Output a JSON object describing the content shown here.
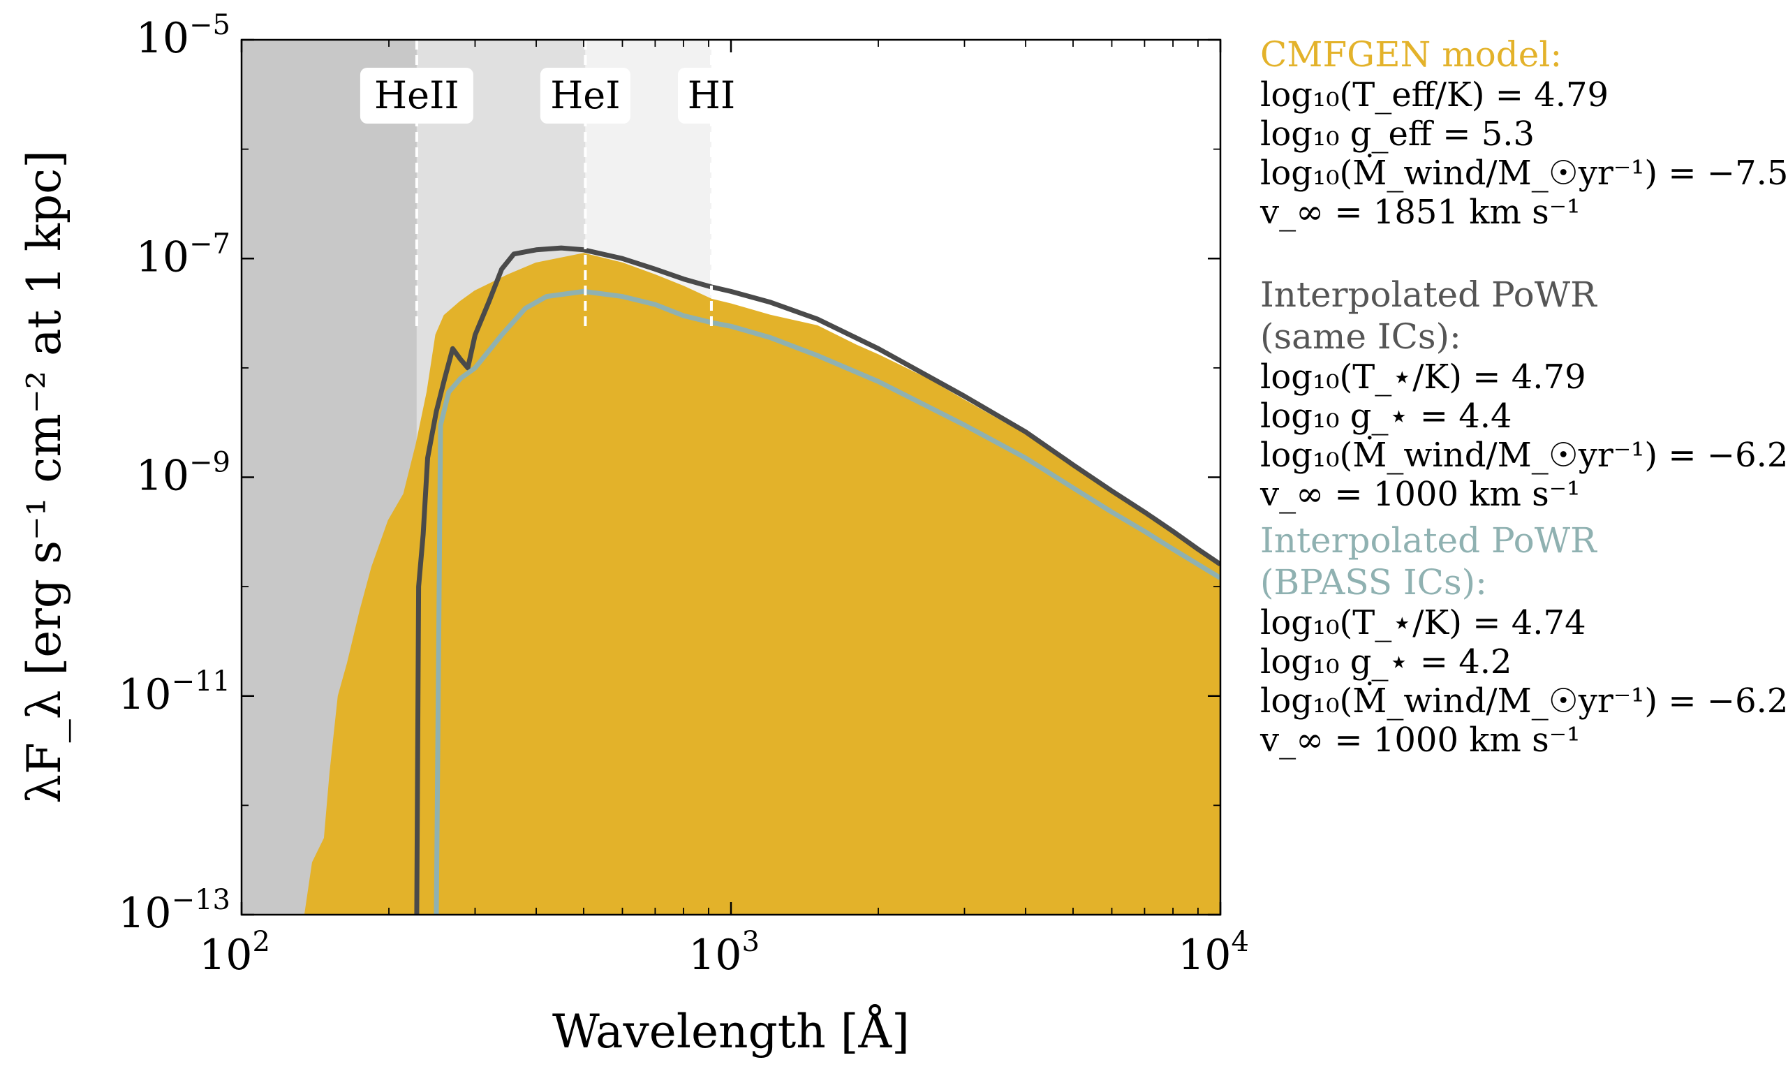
{
  "chart_data": {
    "type": "line",
    "xscale": "log",
    "yscale": "log",
    "xlabel": "Wavelength [Å]",
    "ylabel": "λF_λ [erg s⁻¹ cm⁻² at 1 kpc]",
    "xlim": [
      100,
      10000
    ],
    "ylim": [
      1e-13,
      1e-05
    ],
    "x_ticks": [
      {
        "base": "10",
        "exp": "2",
        "value": 100
      },
      {
        "base": "10",
        "exp": "3",
        "value": 1000
      },
      {
        "base": "10",
        "exp": "4",
        "value": 10000
      }
    ],
    "y_ticks": [
      {
        "base": "10",
        "exp": "−5",
        "value": 1e-05
      },
      {
        "base": "10",
        "exp": "−7",
        "value": 1e-07
      },
      {
        "base": "10",
        "exp": "−9",
        "value": 1e-09
      },
      {
        "base": "10",
        "exp": "−11",
        "value": 1e-11
      },
      {
        "base": "10",
        "exp": "−13",
        "value": 1e-13
      }
    ],
    "ionization_edges": [
      {
        "label": "HeII",
        "wavelength": 228
      },
      {
        "label": "HeI",
        "wavelength": 504
      },
      {
        "label": "HI",
        "wavelength": 912
      }
    ],
    "series": [
      {
        "name": "CMFGEN model",
        "style": "filled",
        "color": "#e3b22a",
        "points": [
          [
            135,
            1e-13
          ],
          [
            140,
            3e-13
          ],
          [
            148,
            5e-13
          ],
          [
            152,
            2e-12
          ],
          [
            158,
            1e-11
          ],
          [
            165,
            2e-11
          ],
          [
            175,
            6e-11
          ],
          [
            185,
            1.5e-10
          ],
          [
            200,
            4e-10
          ],
          [
            215,
            7e-10
          ],
          [
            228,
            2e-09
          ],
          [
            240,
            6e-09
          ],
          [
            250,
            2e-08
          ],
          [
            260,
            3e-08
          ],
          [
            280,
            4e-08
          ],
          [
            300,
            5e-08
          ],
          [
            350,
            7e-08
          ],
          [
            400,
            9e-08
          ],
          [
            500,
            1.1e-07
          ],
          [
            600,
            9e-08
          ],
          [
            700,
            7e-08
          ],
          [
            800,
            5.5e-08
          ],
          [
            912,
            4.2e-08
          ],
          [
            1000,
            3.8e-08
          ],
          [
            1200,
            3e-08
          ],
          [
            1500,
            2.4e-08
          ],
          [
            1800,
            1.6e-08
          ],
          [
            2000,
            1.3e-08
          ],
          [
            2500,
            8e-09
          ],
          [
            3000,
            5e-09
          ],
          [
            4000,
            2.4e-09
          ],
          [
            5000,
            1.2e-09
          ],
          [
            6000,
            7e-10
          ],
          [
            7000,
            4.5e-10
          ],
          [
            8000,
            3e-10
          ],
          [
            9000,
            2.1e-10
          ],
          [
            10000,
            1.6e-10
          ]
        ]
      },
      {
        "name": "Interpolated PoWR (same ICs)",
        "style": "line",
        "color": "#4a4a4a",
        "points": [
          [
            228,
            1e-13
          ],
          [
            230,
            1e-10
          ],
          [
            235,
            3e-10
          ],
          [
            240,
            1.5e-09
          ],
          [
            250,
            4e-09
          ],
          [
            260,
            8e-09
          ],
          [
            270,
            1.5e-08
          ],
          [
            280,
            1.2e-08
          ],
          [
            290,
            1e-08
          ],
          [
            300,
            2e-08
          ],
          [
            320,
            4e-08
          ],
          [
            340,
            8e-08
          ],
          [
            360,
            1.1e-07
          ],
          [
            400,
            1.2e-07
          ],
          [
            450,
            1.25e-07
          ],
          [
            500,
            1.2e-07
          ],
          [
            600,
            1e-07
          ],
          [
            700,
            8e-08
          ],
          [
            800,
            6.5e-08
          ],
          [
            912,
            5.5e-08
          ],
          [
            1000,
            5e-08
          ],
          [
            1200,
            4e-08
          ],
          [
            1500,
            2.8e-08
          ],
          [
            2000,
            1.5e-08
          ],
          [
            3000,
            5.5e-09
          ],
          [
            4000,
            2.6e-09
          ],
          [
            5000,
            1.3e-09
          ],
          [
            6000,
            7.5e-10
          ],
          [
            7000,
            4.8e-10
          ],
          [
            8000,
            3.2e-10
          ],
          [
            9000,
            2.2e-10
          ],
          [
            10000,
            1.6e-10
          ]
        ]
      },
      {
        "name": "Interpolated PoWR (BPASS ICs)",
        "style": "line",
        "color": "#8fb1b1",
        "points": [
          [
            250,
            1e-13
          ],
          [
            255,
            3e-09
          ],
          [
            265,
            6e-09
          ],
          [
            280,
            8e-09
          ],
          [
            300,
            1e-08
          ],
          [
            340,
            2e-08
          ],
          [
            380,
            3.5e-08
          ],
          [
            420,
            4.5e-08
          ],
          [
            500,
            5e-08
          ],
          [
            600,
            4.5e-08
          ],
          [
            700,
            3.8e-08
          ],
          [
            800,
            3e-08
          ],
          [
            912,
            2.6e-08
          ],
          [
            1000,
            2.4e-08
          ],
          [
            1200,
            1.9e-08
          ],
          [
            1500,
            1.3e-08
          ],
          [
            2000,
            7.5e-09
          ],
          [
            3000,
            3e-09
          ],
          [
            4000,
            1.5e-09
          ],
          [
            5000,
            8e-10
          ],
          [
            6000,
            4.8e-10
          ],
          [
            7000,
            3.2e-10
          ],
          [
            8000,
            2.2e-10
          ],
          [
            9000,
            1.6e-10
          ],
          [
            10000,
            1.2e-10
          ]
        ]
      }
    ]
  },
  "legend": {
    "cmfgen": {
      "title": "CMFGEN model:",
      "color": "#e3b22a",
      "params": [
        "log₁₀(T_eff/K) = 4.79",
        "log₁₀ g_eff = 5.3",
        "log₁₀(Ṁ_wind/M_☉yr⁻¹) = −7.5",
        "v_∞ = 1851 km s⁻¹"
      ]
    },
    "powr_same": {
      "title_line1": "Interpolated PoWR",
      "title_line2": "(same ICs):",
      "color": "#555555",
      "params": [
        "log₁₀(T_⋆/K) = 4.79",
        "log₁₀ g_⋆ = 4.4",
        "log₁₀(Ṁ_wind/M_☉yr⁻¹) = −6.2",
        "v_∞ = 1000 km s⁻¹"
      ]
    },
    "powr_bpass": {
      "title_line1": "Interpolated PoWR",
      "title_line2": "(BPASS ICs):",
      "color": "#8fb1b1",
      "params": [
        "log₁₀(T_⋆/K) = 4.74",
        "log₁₀ g_⋆ = 4.2",
        "log₁₀(Ṁ_wind/M_☉yr⁻¹) = −6.2",
        "v_∞ = 1000 km s⁻¹"
      ]
    }
  }
}
